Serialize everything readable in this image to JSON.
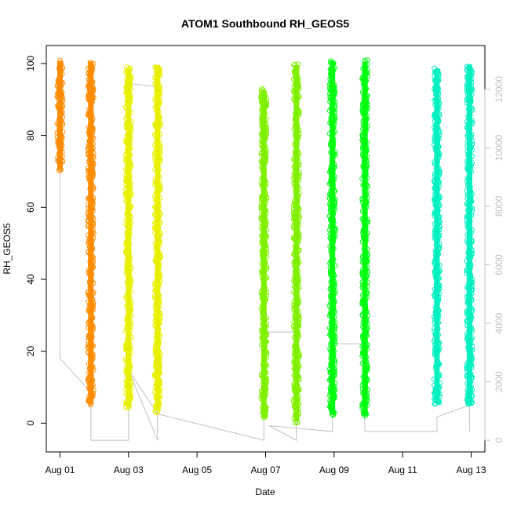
{
  "chart_data": {
    "type": "scatter",
    "title": "ATOM1 Southbound RH_GEOS5",
    "xlabel": "Date",
    "ylabel": "RH_GEOS5",
    "xlim": [
      -0.4,
      12.4
    ],
    "ylim": [
      -8,
      105
    ],
    "x_ticks": [
      0,
      2,
      4,
      6,
      8,
      10,
      12
    ],
    "x_tick_labels": [
      "Aug 01",
      "Aug 03",
      "Aug 05",
      "Aug 07",
      "Aug 09",
      "Aug 11",
      "Aug 13"
    ],
    "y_ticks": [
      0,
      20,
      40,
      60,
      80,
      100
    ],
    "y2_ticks": [
      0,
      2000,
      4000,
      6000,
      8000,
      10000,
      12000
    ],
    "y2lim": [
      -400,
      13500
    ],
    "y2_color": "#c0c0c0",
    "grid": false,
    "legend": "none",
    "point_style": "open-circle",
    "series": [
      {
        "color": "#ff8c00",
        "segments": [
          {
            "x": 0.0,
            "ymin": 70,
            "ymax": 101
          },
          {
            "x": 0.9,
            "ymin": 5,
            "ymax": 101
          }
        ]
      },
      {
        "color": "#e8f000",
        "segments": [
          {
            "x": 2.0,
            "ymin": 4,
            "ymax": 99
          },
          {
            "x": 2.85,
            "ymin": 3,
            "ymax": 100
          }
        ]
      },
      {
        "color": "#80f000",
        "segments": [
          {
            "x": 5.95,
            "ymin": 1,
            "ymax": 93
          },
          {
            "x": 6.9,
            "ymin": 0,
            "ymax": 100
          }
        ]
      },
      {
        "color": "#00ff10",
        "segments": [
          {
            "x": 7.95,
            "ymin": 2,
            "ymax": 101
          },
          {
            "x": 8.9,
            "ymin": 2,
            "ymax": 101
          }
        ]
      },
      {
        "color": "#00f0c0",
        "segments": [
          {
            "x": 11.0,
            "ymin": 5,
            "ymax": 99
          },
          {
            "x": 11.95,
            "ymin": 5,
            "ymax": 100
          }
        ]
      }
    ],
    "altitude_series": {
      "color": "#c0c0c0",
      "points": [
        [
          0.0,
          11500
        ],
        [
          0.0,
          2800
        ],
        [
          0.85,
          1700
        ],
        [
          0.9,
          11500
        ],
        [
          0.9,
          0
        ],
        [
          2.0,
          0
        ],
        [
          2.0,
          12200
        ],
        [
          2.8,
          12100
        ],
        [
          2.85,
          0
        ],
        [
          2.0,
          2400
        ],
        [
          2.85,
          900
        ],
        [
          5.95,
          0
        ],
        [
          5.95,
          3700
        ],
        [
          6.85,
          3700
        ],
        [
          6.9,
          0
        ],
        [
          6.1,
          500
        ],
        [
          7.95,
          300
        ],
        [
          7.95,
          3300
        ],
        [
          8.85,
          3300
        ],
        [
          8.9,
          300
        ],
        [
          11.0,
          300
        ],
        [
          11.0,
          800
        ],
        [
          11.95,
          1200
        ],
        [
          11.95,
          300
        ]
      ]
    }
  }
}
